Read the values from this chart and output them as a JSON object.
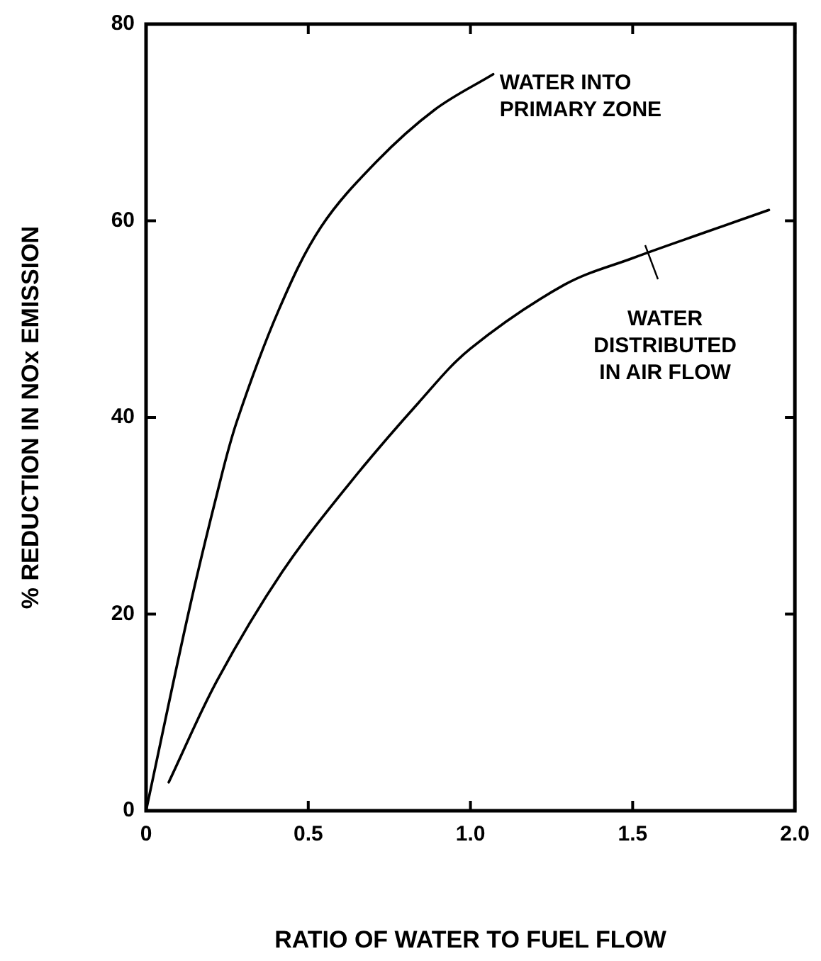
{
  "chart_data": {
    "type": "line",
    "xlabel": "RATIO OF WATER TO FUEL FLOW",
    "ylabel": "% REDUCTION IN NOx EMISSION",
    "series": [
      {
        "color": "#000000",
        "x": [
          0,
          0.13,
          0.22,
          0.28,
          0.41,
          0.54,
          0.71,
          0.89,
          1.07
        ],
        "values": [
          0,
          20,
          32.4,
          39.6,
          51,
          59.4,
          66,
          71.3,
          74.9
        ]
      },
      {
        "color": "#000000",
        "x": [
          0.07,
          0.22,
          0.42,
          0.63,
          0.84,
          1.0,
          1.29,
          1.5,
          1.73,
          1.92
        ],
        "values": [
          2.9,
          13.3,
          24.3,
          33.4,
          41.5,
          47,
          53.5,
          56.2,
          58.9,
          61.1
        ]
      }
    ],
    "annotations": [
      "WATER INTO\nPRIMARY ZONE",
      "WATER\nDISTRIBUTED\nIN AIR FLOW"
    ],
    "xlim": [
      0,
      2
    ],
    "xticks": [
      0,
      0.5,
      {
        "value": 1,
        "label": "1.0"
      },
      1.5,
      {
        "value": 2,
        "label": "2.0"
      }
    ],
    "ylim": [
      0,
      80
    ],
    "yticks": [
      0,
      20,
      40,
      60,
      80
    ],
    "grid": false,
    "legend": false,
    "marker": "none",
    "line_style": "solid"
  }
}
